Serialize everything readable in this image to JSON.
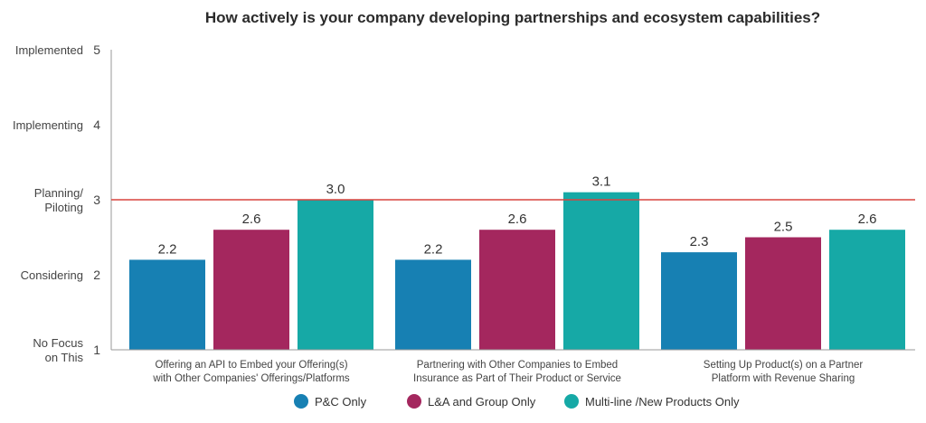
{
  "chart_data": {
    "type": "bar",
    "title": "How actively is your company developing partnerships and ecosystem capabilities?",
    "categories": [
      "Offering an API to Embed your Offering(s) with Other Companies' Offerings/Platforms",
      "Partnering with Other Companies to Embed Insurance as Part of Their Product or Service",
      "Setting Up Product(s) on a Partner Platform with Revenue Sharing"
    ],
    "category_lines": [
      [
        "Offering an API to Embed your Offering(s)",
        "with Other Companies' Offerings/Platforms"
      ],
      [
        "Partnering with Other Companies to Embed",
        "Insurance as Part of Their Product or Service"
      ],
      [
        "Setting Up Product(s) on a Partner",
        "Platform with Revenue Sharing"
      ]
    ],
    "series": [
      {
        "name": "P&C Only",
        "values": [
          2.2,
          2.2,
          2.3
        ],
        "labels": [
          "2.2",
          "2.2",
          "2.3"
        ],
        "color": "#1780b3"
      },
      {
        "name": "L&A and Group Only",
        "values": [
          2.6,
          2.6,
          2.5
        ],
        "labels": [
          "2.6",
          "2.6",
          "2.5"
        ],
        "color": "#a4275e"
      },
      {
        "name": "Multi-line /New Products Only",
        "values": [
          3.0,
          3.1,
          2.6
        ],
        "labels": [
          "3.0",
          "3.1",
          "2.6"
        ],
        "color": "#16a9a6"
      }
    ],
    "ylim": [
      1,
      5
    ],
    "yticks": [
      {
        "value": 5,
        "label": "5",
        "text": [
          "Implemented"
        ]
      },
      {
        "value": 4,
        "label": "4",
        "text": [
          "Implementing"
        ]
      },
      {
        "value": 3,
        "label": "3",
        "text": [
          "Planning/",
          "Piloting"
        ]
      },
      {
        "value": 2,
        "label": "2",
        "text": [
          "Considering"
        ]
      },
      {
        "value": 1,
        "label": "1",
        "text": [
          "No Focus",
          "on This"
        ]
      }
    ],
    "reference_line": {
      "value": 3,
      "color": "#d9443f"
    },
    "legend_position": "bottom",
    "grid": false
  }
}
